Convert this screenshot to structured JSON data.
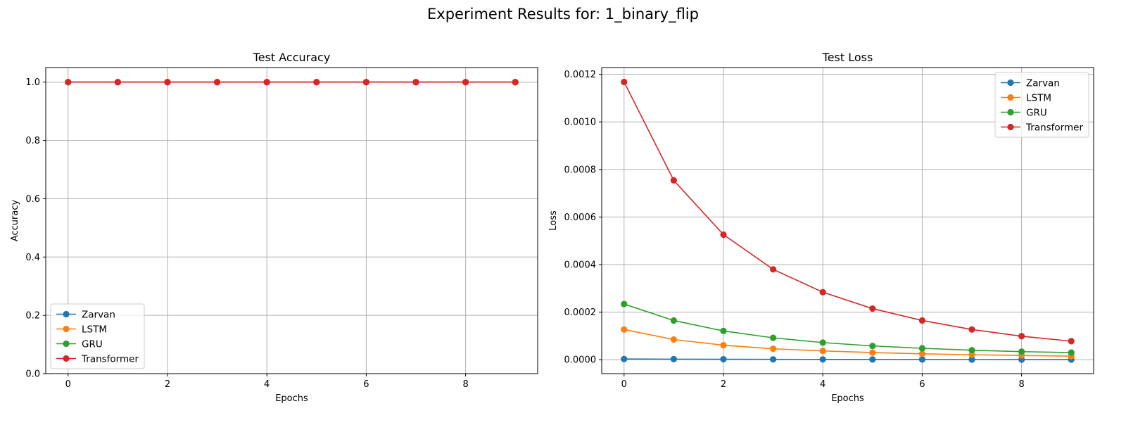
{
  "figure": {
    "title": "Experiment Results for: 1_binary_flip"
  },
  "chart_data": [
    {
      "type": "line",
      "title": "Test Accuracy",
      "xlabel": "Epochs",
      "ylabel": "Accuracy",
      "x": [
        0,
        1,
        2,
        3,
        4,
        5,
        6,
        7,
        8,
        9
      ],
      "xlim": [
        -0.45,
        9.45
      ],
      "ylim": [
        0.0,
        1.05
      ],
      "xticks": [
        0,
        2,
        4,
        6,
        8
      ],
      "xtick_labels": [
        "0",
        "2",
        "4",
        "6",
        "8"
      ],
      "yticks": [
        0.0,
        0.2,
        0.4,
        0.6,
        0.8,
        1.0
      ],
      "ytick_labels": [
        "0.0",
        "0.2",
        "0.4",
        "0.6",
        "0.8",
        "1.0"
      ],
      "grid": true,
      "legend_position": "lower-left",
      "series": [
        {
          "name": "Zarvan",
          "color": "#1f77b4",
          "values": [
            1.0,
            1.0,
            1.0,
            1.0,
            1.0,
            1.0,
            1.0,
            1.0,
            1.0,
            1.0
          ]
        },
        {
          "name": "LSTM",
          "color": "#ff7f0e",
          "values": [
            1.0,
            1.0,
            1.0,
            1.0,
            1.0,
            1.0,
            1.0,
            1.0,
            1.0,
            1.0
          ]
        },
        {
          "name": "GRU",
          "color": "#2ca02c",
          "values": [
            1.0,
            1.0,
            1.0,
            1.0,
            1.0,
            1.0,
            1.0,
            1.0,
            1.0,
            1.0
          ]
        },
        {
          "name": "Transformer",
          "color": "#d62728",
          "values": [
            1.0,
            1.0,
            1.0,
            1.0,
            1.0,
            1.0,
            1.0,
            1.0,
            1.0,
            1.0
          ]
        }
      ]
    },
    {
      "type": "line",
      "title": "Test Loss",
      "xlabel": "Epochs",
      "ylabel": "Loss",
      "x": [
        0,
        1,
        2,
        3,
        4,
        5,
        6,
        7,
        8,
        9
      ],
      "xlim": [
        -0.45,
        9.45
      ],
      "ylim": [
        -5.85e-05,
        0.0012285
      ],
      "xticks": [
        0,
        2,
        4,
        6,
        8
      ],
      "xtick_labels": [
        "0",
        "2",
        "4",
        "6",
        "8"
      ],
      "yticks": [
        0.0,
        0.0002,
        0.0004,
        0.0006,
        0.0008,
        0.001,
        0.0012
      ],
      "ytick_labels": [
        "0.0000",
        "0.0002",
        "0.0004",
        "0.0006",
        "0.0008",
        "0.0010",
        "0.0012"
      ],
      "grid": true,
      "legend_position": "upper-right",
      "series": [
        {
          "name": "Zarvan",
          "color": "#1f77b4",
          "values": [
            3e-06,
            2.5e-06,
            2e-06,
            1.6e-06,
            1.3e-06,
            1.1e-06,
            9e-07,
            7e-07,
            6e-07,
            5e-07
          ]
        },
        {
          "name": "LSTM",
          "color": "#ff7f0e",
          "values": [
            0.000127,
            8.5e-05,
            6.1e-05,
            4.6e-05,
            3.7e-05,
            3e-05,
            2.5e-05,
            2.1e-05,
            1.8e-05,
            1.5e-05
          ]
        },
        {
          "name": "GRU",
          "color": "#2ca02c",
          "values": [
            0.000234,
            0.000165,
            0.000121,
            9.2e-05,
            7.2e-05,
            5.8e-05,
            4.8e-05,
            4e-05,
            3.4e-05,
            3e-05
          ]
        },
        {
          "name": "Transformer",
          "color": "#d62728",
          "values": [
            0.001168,
            0.000754,
            0.000526,
            0.00038,
            0.000284,
            0.000215,
            0.000165,
            0.000127,
            9.9e-05,
            7.8e-05
          ]
        }
      ]
    }
  ]
}
